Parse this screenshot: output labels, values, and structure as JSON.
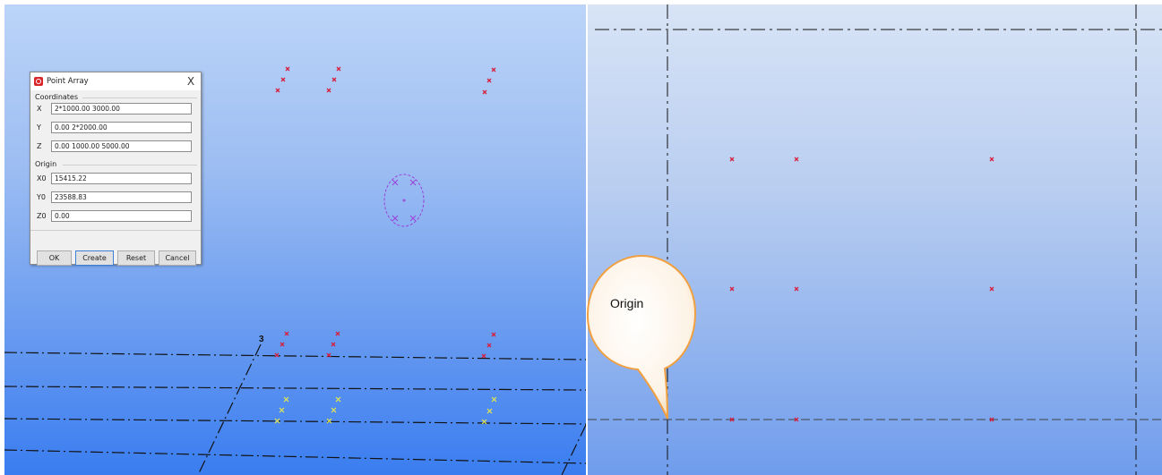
{
  "dialog": {
    "title": "Point Array",
    "close_glyph": "X",
    "coordinates_label": "Coordinates",
    "x_label": "X",
    "x_value": "2*1000.00 3000.00",
    "y_label": "Y",
    "y_value": "0.00 2*2000.00",
    "z_label": "Z",
    "z_value": "0.00 1000.00 5000.00",
    "origin_label": "Origin",
    "x0_label": "X0",
    "x0_value": "15415.22",
    "y0_label": "Y0",
    "y0_value": "23588.83",
    "z0_label": "Z0",
    "z0_value": "0.00",
    "ok_label": "OK",
    "create_label": "Create",
    "reset_label": "Reset",
    "cancel_label": "Cancel",
    "icon": "app-logo-icon"
  },
  "viewport": {
    "grid_number": "3",
    "callout_text": "Origin",
    "point_color": "#d81e3c",
    "preview_point_color": "#e8e84a",
    "cursor_color": "#9b40d8",
    "gridline_color": "#111111"
  }
}
